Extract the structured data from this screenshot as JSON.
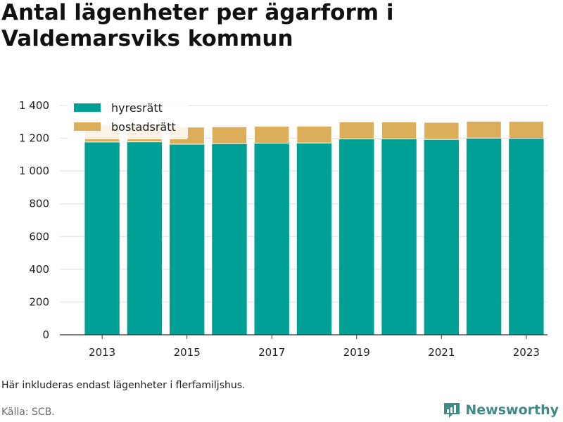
{
  "title": "Antal lägenheter per ägarform i Valdemarsviks kommun",
  "note": "Här inkluderas endast lägenheter i flerfamiljshus.",
  "source": "Källa: SCB.",
  "brand": {
    "name": "Newsworthy",
    "icon": "newsworthy-logo-icon",
    "color": "#3f8a86"
  },
  "chart_data": {
    "type": "bar",
    "stacked": true,
    "categories": [
      "2013",
      "2014",
      "2015",
      "2016",
      "2017",
      "2018",
      "2019",
      "2020",
      "2021",
      "2022",
      "2023"
    ],
    "x_tick_labels": [
      "2013",
      "2015",
      "2017",
      "2019",
      "2021",
      "2023"
    ],
    "series": [
      {
        "name": "hyresrätt",
        "color": "#00a096",
        "values": [
          1177,
          1178,
          1164,
          1167,
          1170,
          1171,
          1196,
          1196,
          1193,
          1201,
          1200
        ]
      },
      {
        "name": "bostadsrätt",
        "color": "#dcae5a",
        "values": [
          103,
          103,
          104,
          103,
          103,
          103,
          104,
          104,
          104,
          103,
          103
        ]
      }
    ],
    "ylim": [
      0,
      1400
    ],
    "y_ticks": [
      0,
      200,
      400,
      600,
      800,
      1000,
      1200,
      1400
    ],
    "y_tick_labels": [
      "0",
      "200",
      "400",
      "600",
      "800",
      "1 000",
      "1 200",
      "1 400"
    ],
    "xlabel": "",
    "ylabel": "",
    "grid": true,
    "legend_position": "top-left"
  }
}
